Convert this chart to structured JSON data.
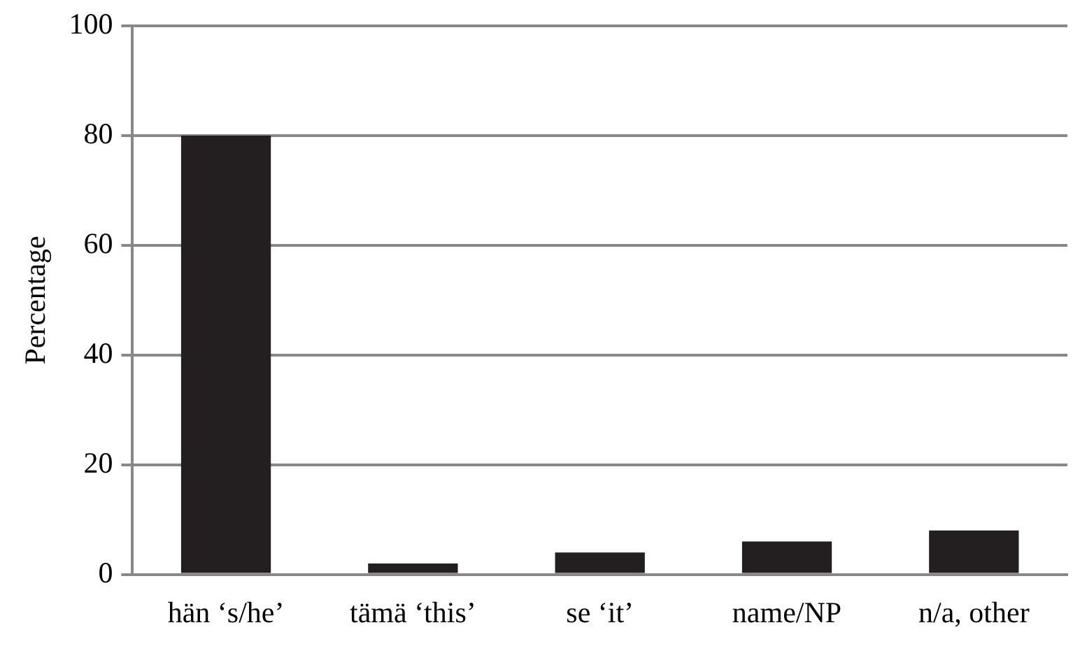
{
  "chart_data": {
    "type": "bar",
    "ylabel": "Percentage",
    "categories": [
      "hän ‘s/he’",
      "tämä ‘this’",
      "se ‘it’",
      "name/NP",
      "n/a, other"
    ],
    "values": [
      80,
      2,
      4,
      6,
      8
    ],
    "color": "#231f20",
    "ylim": [
      0,
      100
    ],
    "yticks": [
      0,
      20,
      40,
      60,
      80,
      100
    ],
    "grid": "y",
    "legend": false
  }
}
